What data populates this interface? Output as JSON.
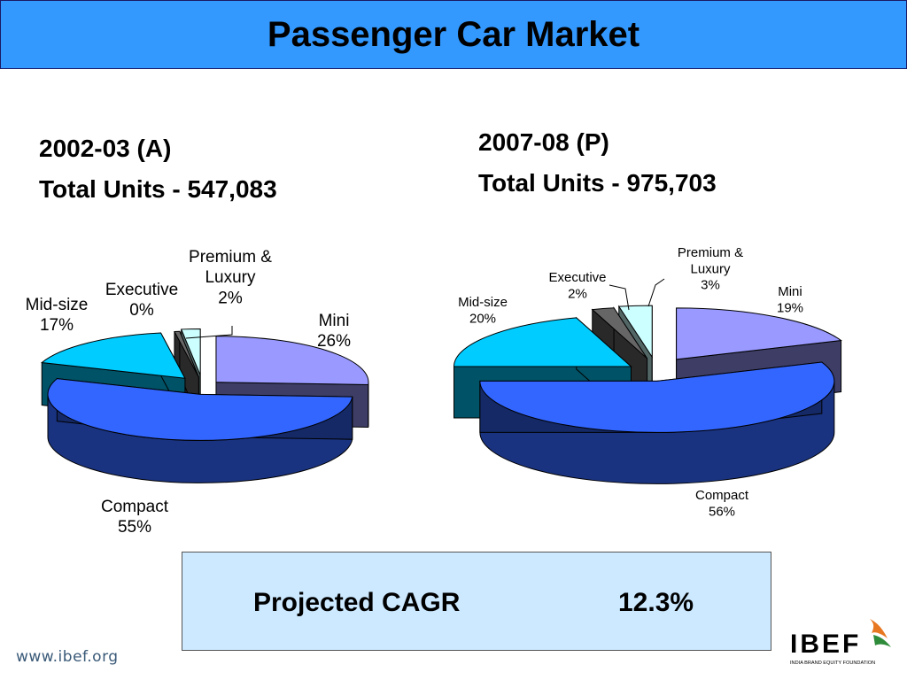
{
  "title": "Passenger Car Market",
  "chart_data": [
    {
      "type": "pie",
      "heading_period": "2002-03 (A)",
      "heading_total": "Total Units - 547,083",
      "slices": [
        {
          "name": "Mini",
          "value": 26,
          "label": "26%",
          "color": "#9999ff"
        },
        {
          "name": "Compact",
          "value": 55,
          "label": "55%",
          "color": "#3366ff"
        },
        {
          "name": "Mid-size",
          "value": 17,
          "label": "17%",
          "color": "#00ccff"
        },
        {
          "name": "Executive",
          "value": 0,
          "label": "0%",
          "color": "#666666"
        },
        {
          "name": "Premium & Luxury",
          "value": 2,
          "label": "2%",
          "color": "#ccffff"
        }
      ]
    },
    {
      "type": "pie",
      "heading_period": "2007-08 (P)",
      "heading_total": "Total Units - 975,703",
      "slices": [
        {
          "name": "Mini",
          "value": 19,
          "label": "19%",
          "color": "#9999ff"
        },
        {
          "name": "Compact",
          "value": 56,
          "label": "56%",
          "color": "#3366ff"
        },
        {
          "name": "Mid-size",
          "value": 20,
          "label": "20%",
          "color": "#00ccff"
        },
        {
          "name": "Executive",
          "value": 2,
          "label": "2%",
          "color": "#666666"
        },
        {
          "name": "Premium & Luxury",
          "value": 3,
          "label": "3%",
          "color": "#ccffff"
        }
      ]
    }
  ],
  "cagr": {
    "label": "Projected CAGR",
    "value": "12.3%"
  },
  "footer": {
    "url": "www.ibef.org"
  },
  "logo": {
    "name": "IBEF",
    "tagline": "INDIA BRAND EQUITY FOUNDATION",
    "icon": "ibef-bird-logo"
  }
}
